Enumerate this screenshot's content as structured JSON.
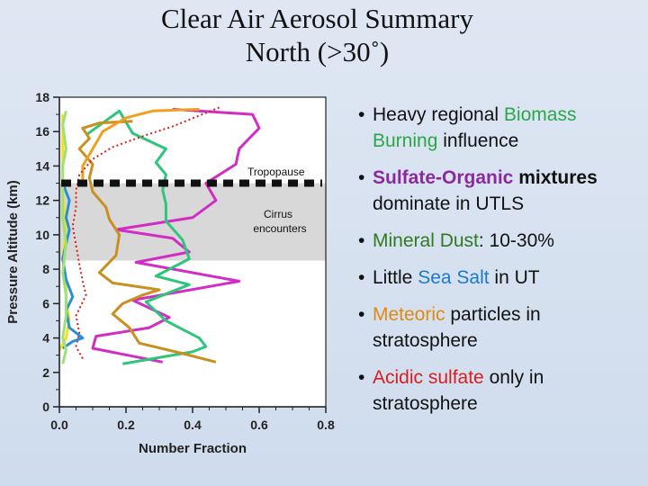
{
  "title_line1": "Clear Air Aerosol Summary",
  "title_line2": "North (>30˚)",
  "bullets": [
    {
      "parts": [
        {
          "text": "Heavy regional "
        },
        {
          "text": "Biomass Burning",
          "cls": "hl-green"
        },
        {
          "text": " influence"
        }
      ]
    },
    {
      "parts": [
        {
          "text": "Sulfate-Organic",
          "cls": "hl-purple"
        },
        {
          "text": " mixtures",
          "cls": "plain-bold"
        },
        {
          "text": " dominate in UTLS"
        }
      ]
    },
    {
      "parts": [
        {
          "text": "Mineral Dust",
          "cls": "hl-darkgreen"
        },
        {
          "text": ": 10-30%"
        }
      ]
    },
    {
      "parts": [
        {
          "text": "Little "
        },
        {
          "text": "Sea Salt",
          "cls": "hl-blue"
        },
        {
          "text": " in UT"
        }
      ]
    },
    {
      "parts": [
        {
          "text": "Meteoric",
          "cls": "hl-orange"
        },
        {
          "text": " particles in stratosphere"
        }
      ]
    },
    {
      "parts": [
        {
          "text": "Acidic sulfate",
          "cls": "hl-red"
        },
        {
          "text": " only in stratosphere"
        }
      ]
    }
  ],
  "chart_data": {
    "type": "line",
    "xlabel": "Number Fraction",
    "ylabel": "Pressure Altitude (km)",
    "xlim": [
      0,
      0.8
    ],
    "ylim": [
      0,
      18
    ],
    "xticks": [
      0.0,
      0.2,
      0.4,
      0.6,
      0.8
    ],
    "xtick_labels": [
      "0.0",
      "0.2",
      "0.4",
      "0.6",
      "0.8"
    ],
    "yticks": [
      0,
      2,
      4,
      6,
      8,
      10,
      12,
      14,
      16,
      18
    ],
    "cirrus_band": [
      8.5,
      13.0
    ],
    "tropopause_km": 13.0,
    "annotations": {
      "tropopause": "Tropopause",
      "cirrus": [
        "Cirrus",
        "encounters"
      ]
    },
    "series": [
      {
        "color": "#d12dc4",
        "dash": false,
        "points": [
          [
            0.31,
            2.6
          ],
          [
            0.1,
            3.4
          ],
          [
            0.11,
            4.1
          ],
          [
            0.27,
            4.6
          ],
          [
            0.33,
            5.2
          ],
          [
            0.22,
            6.2
          ],
          [
            0.54,
            7.3
          ],
          [
            0.23,
            8.4
          ],
          [
            0.39,
            9.0
          ],
          [
            0.34,
            9.8
          ],
          [
            0.17,
            10.3
          ],
          [
            0.4,
            11.0
          ],
          [
            0.47,
            12.0
          ],
          [
            0.44,
            13.0
          ],
          [
            0.53,
            14.1
          ],
          [
            0.54,
            15.0
          ],
          [
            0.6,
            16.2
          ],
          [
            0.58,
            17.0
          ],
          [
            0.34,
            17.3
          ]
        ]
      },
      {
        "color": "#2fc57a",
        "dash": false,
        "points": [
          [
            0.19,
            2.5
          ],
          [
            0.4,
            3.2
          ],
          [
            0.44,
            3.5
          ],
          [
            0.42,
            4.0
          ],
          [
            0.32,
            5.0
          ],
          [
            0.26,
            6.1
          ],
          [
            0.39,
            7.1
          ],
          [
            0.29,
            7.6
          ],
          [
            0.39,
            8.6
          ],
          [
            0.37,
            9.7
          ],
          [
            0.32,
            10.8
          ],
          [
            0.32,
            11.8
          ],
          [
            0.31,
            12.6
          ],
          [
            0.32,
            13.5
          ],
          [
            0.29,
            14.2
          ],
          [
            0.32,
            15.0
          ],
          [
            0.22,
            15.9
          ],
          [
            0.18,
            17.2
          ],
          [
            0.13,
            16.5
          ],
          [
            0.08,
            15.8
          ]
        ]
      },
      {
        "color": "#c99020",
        "dash": false,
        "points": [
          [
            0.47,
            2.6
          ],
          [
            0.37,
            3.1
          ],
          [
            0.24,
            3.7
          ],
          [
            0.21,
            4.6
          ],
          [
            0.16,
            5.4
          ],
          [
            0.19,
            6.0
          ],
          [
            0.25,
            6.5
          ],
          [
            0.3,
            6.8
          ],
          [
            0.16,
            7.2
          ],
          [
            0.12,
            7.8
          ],
          [
            0.17,
            8.8
          ],
          [
            0.18,
            10.0
          ],
          [
            0.15,
            10.9
          ],
          [
            0.14,
            11.6
          ],
          [
            0.1,
            12.5
          ],
          [
            0.09,
            13.3
          ],
          [
            0.1,
            14.1
          ],
          [
            0.06,
            15.0
          ],
          [
            0.09,
            15.6
          ],
          [
            0.07,
            16.2
          ],
          [
            0.12,
            16.5
          ],
          [
            0.22,
            16.6
          ]
        ]
      },
      {
        "color": "#f0a020",
        "dash": false,
        "points": [
          [
            0.07,
            13.2
          ],
          [
            0.07,
            14.0
          ],
          [
            0.1,
            15.0
          ],
          [
            0.13,
            16.0
          ],
          [
            0.2,
            16.8
          ],
          [
            0.28,
            17.2
          ],
          [
            0.42,
            17.3
          ]
        ]
      },
      {
        "color": "#d81e1e",
        "dash": true,
        "points": [
          [
            0.07,
            2.8
          ],
          [
            0.05,
            3.5
          ],
          [
            0.06,
            4.3
          ],
          [
            0.05,
            5.3
          ],
          [
            0.08,
            6.5
          ],
          [
            0.07,
            7.3
          ],
          [
            0.06,
            8.3
          ],
          [
            0.05,
            9.4
          ],
          [
            0.04,
            10.5
          ],
          [
            0.05,
            11.6
          ],
          [
            0.05,
            12.6
          ],
          [
            0.06,
            13.5
          ],
          [
            0.1,
            14.4
          ],
          [
            0.16,
            15.1
          ],
          [
            0.26,
            15.8
          ],
          [
            0.34,
            16.3
          ],
          [
            0.48,
            17.4
          ]
        ]
      },
      {
        "color": "#f5e020",
        "dash": false,
        "points": [
          [
            0.0,
            3.3
          ],
          [
            0.02,
            4.0
          ],
          [
            0.03,
            5.0
          ],
          [
            0.02,
            6.2
          ],
          [
            0.02,
            7.4
          ],
          [
            0.01,
            8.6
          ],
          [
            0.02,
            10.5
          ],
          [
            0.01,
            12.5
          ],
          [
            0.01,
            14.5
          ],
          [
            0.01,
            16.0
          ],
          [
            0.01,
            17.0
          ]
        ]
      },
      {
        "color": "#2a8fd8",
        "dash": false,
        "points": [
          [
            0.01,
            3.4
          ],
          [
            0.04,
            3.8
          ],
          [
            0.07,
            4.0
          ],
          [
            0.03,
            4.6
          ],
          [
            0.02,
            5.6
          ],
          [
            0.04,
            6.4
          ],
          [
            0.02,
            7.4
          ],
          [
            0.01,
            8.6
          ],
          [
            0.03,
            10.3
          ],
          [
            0.02,
            11.0
          ],
          [
            0.03,
            12.0
          ],
          [
            0.01,
            13.0
          ]
        ]
      },
      {
        "color": "#9fe07a",
        "dash": false,
        "points": [
          [
            0.01,
            2.5
          ],
          [
            0.02,
            3.3
          ],
          [
            0.01,
            4.0
          ],
          [
            0.02,
            5.3
          ],
          [
            0.02,
            6.5
          ],
          [
            0.01,
            7.8
          ],
          [
            0.02,
            9.5
          ],
          [
            0.01,
            11.0
          ],
          [
            0.01,
            13.2
          ],
          [
            0.01,
            14.0
          ],
          [
            0.02,
            15.0
          ],
          [
            0.01,
            16.4
          ],
          [
            0.02,
            17.2
          ]
        ]
      }
    ]
  }
}
